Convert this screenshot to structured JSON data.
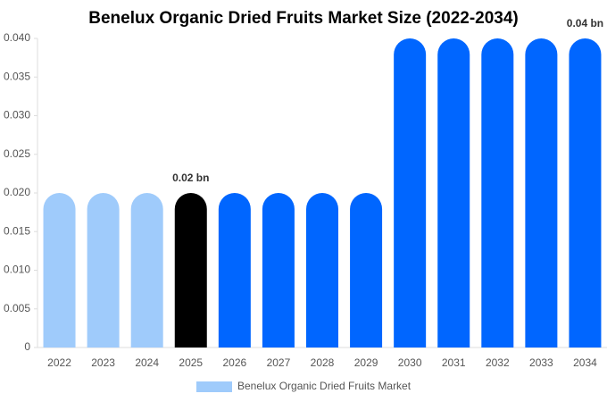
{
  "chart_data": {
    "type": "bar",
    "title": "Benelux Organic Dried Fruits Market Size (2022-2034)",
    "categories": [
      "2022",
      "2023",
      "2024",
      "2025",
      "2026",
      "2027",
      "2028",
      "2029",
      "2030",
      "2031",
      "2032",
      "2033",
      "2034"
    ],
    "series": [
      {
        "name": "Benelux Organic Dried Fruits Market",
        "color": "#9fcbfb",
        "values": [
          0.02,
          0.02,
          0.02,
          0.02,
          0.02,
          0.02,
          0.02,
          0.02,
          0.04,
          0.04,
          0.04,
          0.04,
          0.04
        ],
        "value_labels": [
          null,
          null,
          null,
          "0.02 bn",
          null,
          null,
          null,
          null,
          null,
          null,
          null,
          null,
          "0.04 bn"
        ],
        "bar_colors": [
          "#9fcbfb",
          "#9fcbfb",
          "#9fcbfb",
          "#000000",
          "#0066ff",
          "#0066ff",
          "#0066ff",
          "#0066ff",
          "#0066ff",
          "#0066ff",
          "#0066ff",
          "#0066ff",
          "#0066ff"
        ]
      }
    ],
    "ylim": [
      0,
      0.04
    ],
    "yticks": [
      0,
      0.005,
      {
        "value": 0.01,
        "label": "0.010"
      },
      0.015,
      {
        "value": 0.02,
        "label": "0.020"
      },
      0.025,
      {
        "value": 0.03,
        "label": "0.030"
      },
      0.035,
      {
        "value": 0.04,
        "label": "0.040"
      }
    ],
    "grid": false
  }
}
